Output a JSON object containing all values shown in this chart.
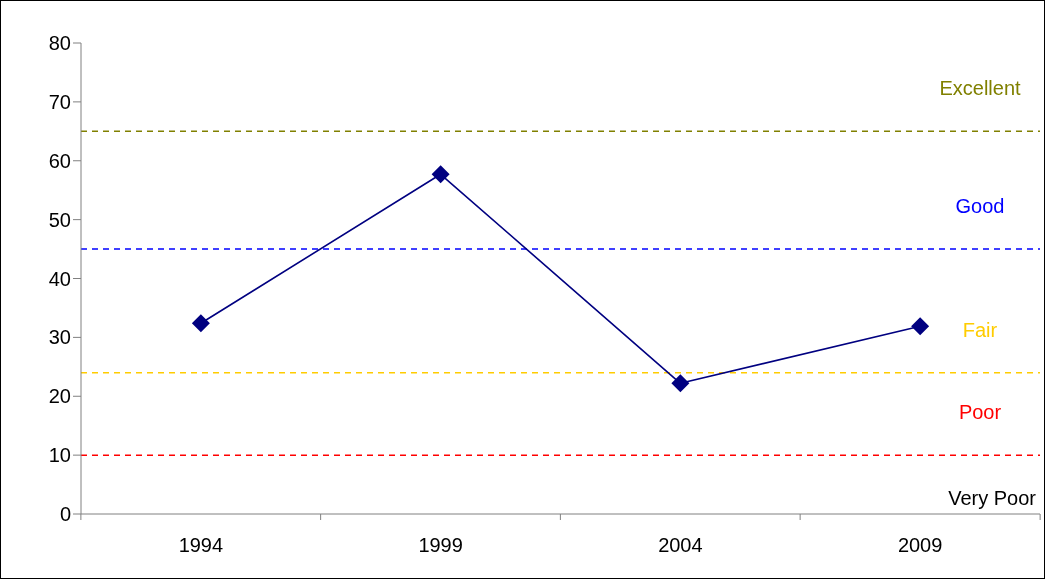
{
  "chart_data": {
    "type": "line",
    "categories": [
      "1994",
      "1999",
      "2004",
      "2009"
    ],
    "series": [
      {
        "color": "#000080",
        "values": [
          32.4,
          57.7,
          22.2,
          31.9
        ]
      }
    ],
    "ylim": [
      0,
      80
    ],
    "yticks": [
      0,
      10,
      20,
      30,
      40,
      50,
      60,
      70,
      80
    ],
    "grid": false,
    "legend": false,
    "marker": "diamond",
    "line_style": "solid",
    "ref_lines": [
      {
        "axis": "y",
        "value": 65,
        "label": "Excellent",
        "color": "#808000",
        "line_style": "dashed"
      },
      {
        "axis": "y",
        "value": 45,
        "label": "Good",
        "color": "#0000ff",
        "line_style": "dashed"
      },
      {
        "axis": "y",
        "value": 24,
        "label": "Fair",
        "color": "#ffcc00",
        "line_style": "dashed"
      },
      {
        "axis": "y",
        "value": 10,
        "label": "Poor",
        "color": "#ff0000",
        "line_style": "dashed"
      }
    ],
    "annotations": [
      "Very Poor"
    ]
  }
}
